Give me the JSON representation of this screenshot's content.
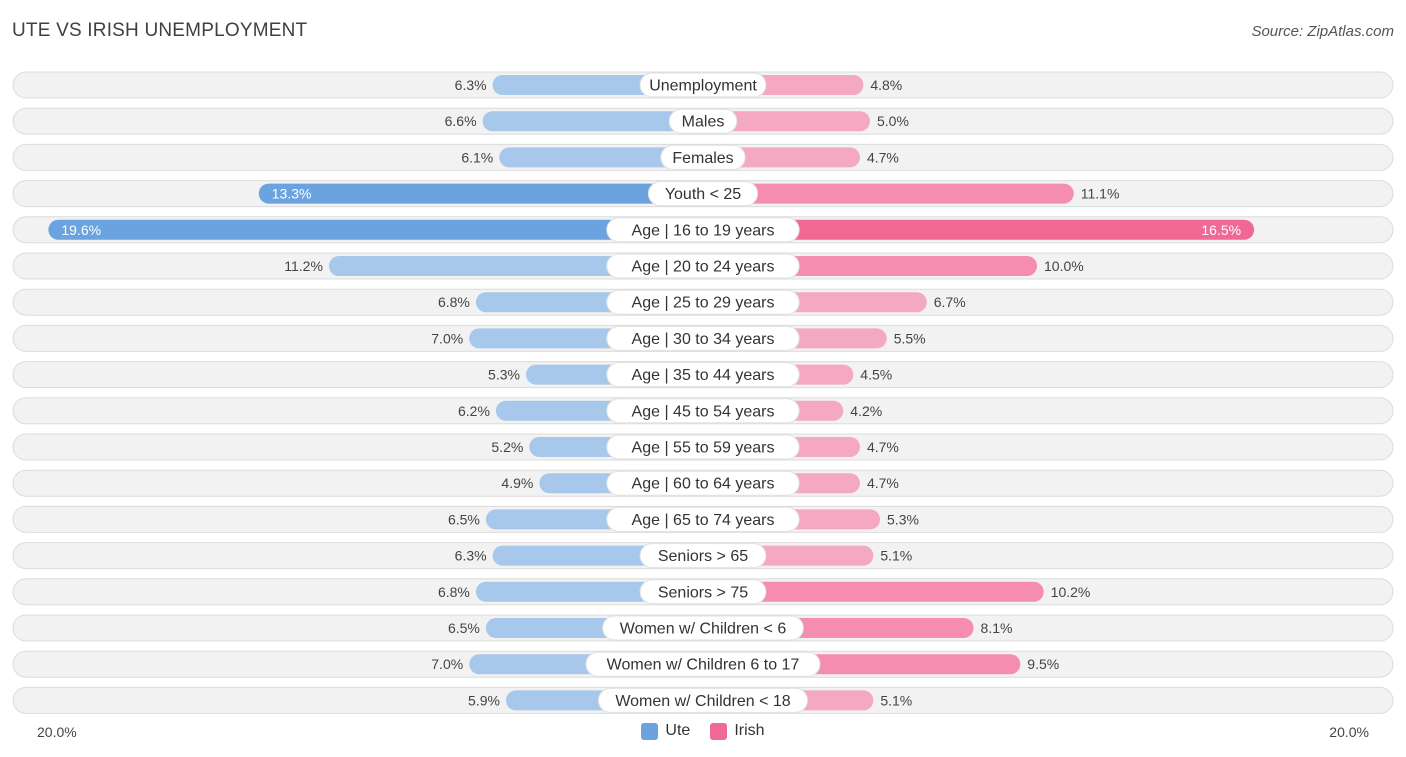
{
  "title": "UTE VS IRISH UNEMPLOYMENT",
  "source": "Source: ZipAtlas.com",
  "colors": {
    "ute": "#6aa3df",
    "ute_light": "#a7c8ea",
    "irish": "#f06894",
    "irish_light": "#f5a8c1"
  },
  "chart_data": {
    "type": "bar",
    "orientation": "horizontal-diverging",
    "title": "UTE VS IRISH UNEMPLOYMENT",
    "axis_max": 20.0,
    "axis_left_label": "20.0%",
    "axis_right_label": "20.0%",
    "legend": [
      "Ute",
      "Irish"
    ],
    "categories": [
      "Unemployment",
      "Males",
      "Females",
      "Youth < 25",
      "Age | 16 to 19 years",
      "Age | 20 to 24 years",
      "Age | 25 to 29 years",
      "Age | 30 to 34 years",
      "Age | 35 to 44 years",
      "Age | 45 to 54 years",
      "Age | 55 to 59 years",
      "Age | 60 to 64 years",
      "Age | 65 to 74 years",
      "Seniors > 65",
      "Seniors > 75",
      "Women w/ Children < 6",
      "Women w/ Children 6 to 17",
      "Women w/ Children < 18"
    ],
    "series": [
      {
        "name": "Ute",
        "values": [
          6.3,
          6.6,
          6.1,
          13.3,
          19.6,
          11.2,
          6.8,
          7.0,
          5.3,
          6.2,
          5.2,
          4.9,
          6.5,
          6.3,
          6.8,
          6.5,
          7.0,
          5.9
        ],
        "labels": [
          "6.3%",
          "6.6%",
          "6.1%",
          "13.3%",
          "19.6%",
          "11.2%",
          "6.8%",
          "7.0%",
          "5.3%",
          "6.2%",
          "5.2%",
          "4.9%",
          "6.5%",
          "6.3%",
          "6.8%",
          "6.5%",
          "7.0%",
          "5.9%"
        ]
      },
      {
        "name": "Irish",
        "values": [
          4.8,
          5.0,
          4.7,
          11.1,
          16.5,
          10.0,
          6.7,
          5.5,
          4.5,
          4.2,
          4.7,
          4.7,
          5.3,
          5.1,
          10.2,
          8.1,
          9.5,
          5.1
        ],
        "labels": [
          "4.8%",
          "5.0%",
          "4.7%",
          "11.1%",
          "16.5%",
          "10.0%",
          "6.7%",
          "5.5%",
          "4.5%",
          "4.2%",
          "4.7%",
          "4.7%",
          "5.3%",
          "5.1%",
          "10.2%",
          "8.1%",
          "9.5%",
          "5.1%"
        ]
      }
    ]
  }
}
